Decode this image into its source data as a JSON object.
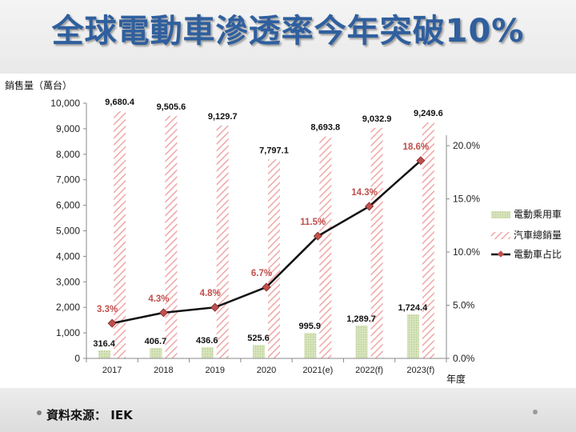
{
  "title": "全球電動車滲透率今年突破10%",
  "source": {
    "label": "資料來源：",
    "value": "IEK"
  },
  "chart_data": {
    "type": "bar",
    "categories": [
      "2017",
      "2018",
      "2019",
      "2020",
      "2021(e)",
      "2022(f)",
      "2023(f)"
    ],
    "series": [
      {
        "name": "電動乘用車",
        "axis": "left",
        "kind": "bar",
        "pattern": "dots",
        "color": "#d7e4bd",
        "values": [
          316.4,
          406.7,
          436.6,
          525.6,
          995.9,
          1289.7,
          1724.4
        ],
        "labels": [
          "316.4",
          "406.7",
          "436.6",
          "525.6",
          "995.9",
          "1,289.7",
          "1,724.4"
        ]
      },
      {
        "name": "汽車總銷量",
        "axis": "left",
        "kind": "bar",
        "pattern": "diagonal",
        "color": "#f0a7a7",
        "values": [
          9680.4,
          9505.6,
          9129.7,
          7797.1,
          8693.8,
          9032.9,
          9249.6
        ],
        "labels": [
          "9,680.4",
          "9,505.6",
          "9,129.7",
          "7,797.1",
          "8,693.8",
          "9,032.9",
          "9,249.6"
        ]
      },
      {
        "name": "電動車占比",
        "axis": "right",
        "kind": "line",
        "color": "#111111",
        "marker_color": "#c0504d",
        "values": [
          3.3,
          4.3,
          4.8,
          6.7,
          11.5,
          14.3,
          18.6
        ],
        "labels": [
          "3.3%",
          "4.3%",
          "4.8%",
          "6.7%",
          "11.5%",
          "14.3%",
          "18.6%"
        ]
      }
    ],
    "ylabel": "銷售量（萬台）",
    "xlabel": "年度",
    "ylim": [
      0,
      10000
    ],
    "y_ticks": [
      "0",
      "1,000",
      "2,000",
      "3,000",
      "4,000",
      "5,000",
      "6,000",
      "7,000",
      "8,000",
      "9,000",
      "10,000"
    ],
    "y2lim": [
      0,
      24
    ],
    "y2_ticks": [
      "0.0%",
      "5.0%",
      "10.0%",
      "15.0%",
      "20.0%"
    ],
    "legend_position": "right",
    "pct_label_color": "#c0504d"
  }
}
